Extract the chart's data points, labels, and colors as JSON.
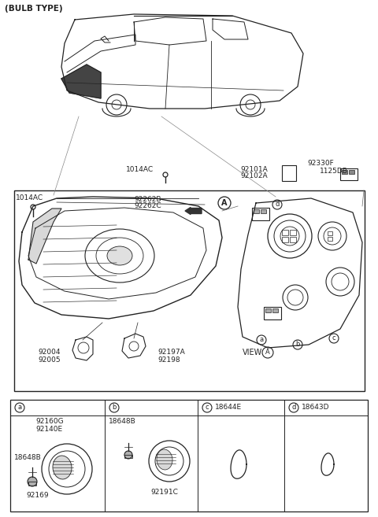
{
  "bg_color": "#ffffff",
  "line_color": "#222222",
  "part_numbers": {
    "bulb_type": "(BULB TYPE)",
    "1014ac_top": "1014AC",
    "1014ac_left": "1014AC",
    "92262b": "92262B",
    "92262c": "92262C",
    "92004": "92004",
    "92005": "92005",
    "92197a": "92197A",
    "92198": "92198",
    "92101a": "92101A",
    "92102a": "92102A",
    "92330f": "92330F",
    "1125db": "1125DB",
    "view_a": "VIEW",
    "18644e": "18644E",
    "18643d": "18643D",
    "92160g": "92160G",
    "92140e": "92140E",
    "18648b_a": "18648B",
    "92169": "92169",
    "18648b_b": "18648B",
    "92191c": "92191C"
  }
}
